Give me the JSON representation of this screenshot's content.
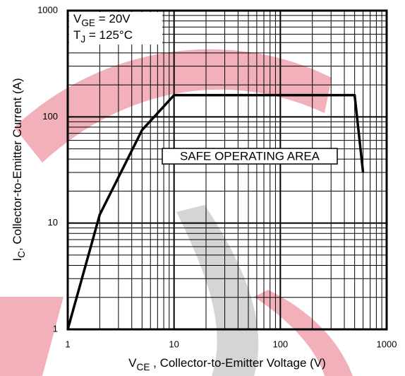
{
  "chart_data": {
    "type": "line",
    "x_label": {
      "main": "V",
      "sub": "CE",
      "rest": " , Collector-to-Emitter Voltage (V)"
    },
    "y_label": {
      "main": "I",
      "sub": "C",
      "rest": ", Collector-to-Emitter Current (A)"
    },
    "annotations": [
      {
        "main": "V",
        "sub": "GE",
        "rest": " = 20V"
      },
      {
        "main": "T",
        "sub": "J",
        "rest": "  = 125°C"
      },
      {
        "text": "SAFE OPERATING AREA"
      }
    ],
    "x": [
      1,
      2,
      5,
      10,
      500,
      600
    ],
    "series": [
      {
        "color": "#000000",
        "values": [
          1,
          12,
          75,
          160,
          160,
          30
        ]
      }
    ],
    "xlim": [
      1,
      1000
    ],
    "ylim": [
      1,
      1000
    ],
    "xticks": [
      1,
      10,
      100,
      1000
    ],
    "yticks": [
      1,
      10,
      100,
      1000
    ],
    "xscale": "log",
    "yscale": "log",
    "grid": true
  }
}
